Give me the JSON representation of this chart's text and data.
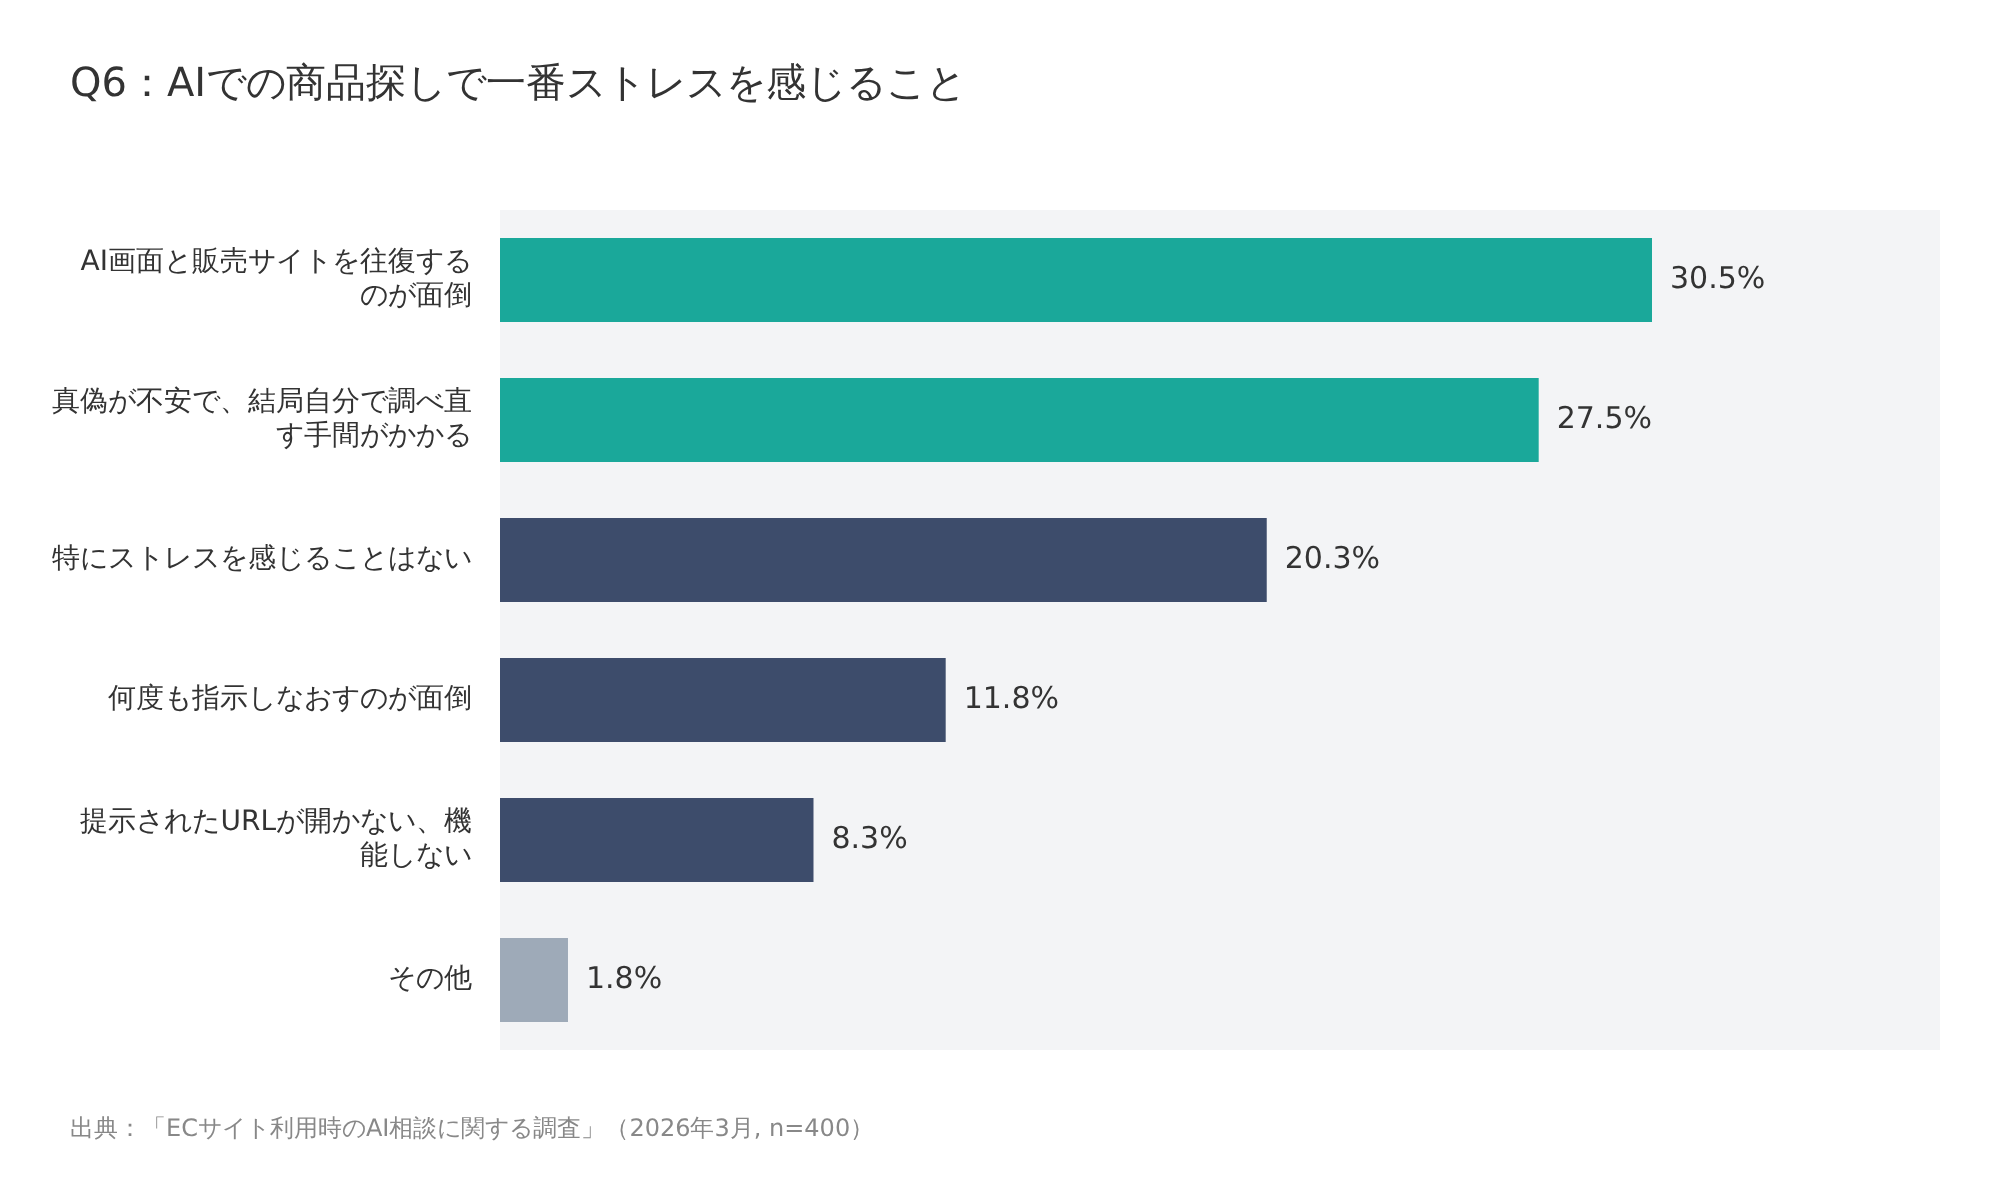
{
  "chart_data": {
    "type": "bar",
    "orientation": "horizontal",
    "title": "Q6：AIでの商品探しで一番ストレスを感じること",
    "categories": [
      "AI画面と販売サイトを往復するのが面倒",
      "真偽が不安で、結局自分で調べ直す手間がかかる",
      "特にストレスを感じることはない",
      "何度も指示しなおすのが面倒",
      "提示されたURLが開かない、機能しない",
      "その他"
    ],
    "values": [
      30.5,
      27.5,
      20.3,
      11.8,
      8.3,
      1.8
    ],
    "colors": [
      "#1aa89a",
      "#1aa89a",
      "#3d4c6b",
      "#3d4c6b",
      "#3d4c6b",
      "#9eaab8"
    ],
    "value_labels": [
      "30.5%",
      "27.5%",
      "20.3%",
      "11.8%",
      "8.3%",
      "1.8%"
    ],
    "grid": false,
    "legend": false,
    "annotations": [
      "出典：「ECサイト利用時のAI相談に関する調査」（2026年3月, n=400）"
    ]
  }
}
